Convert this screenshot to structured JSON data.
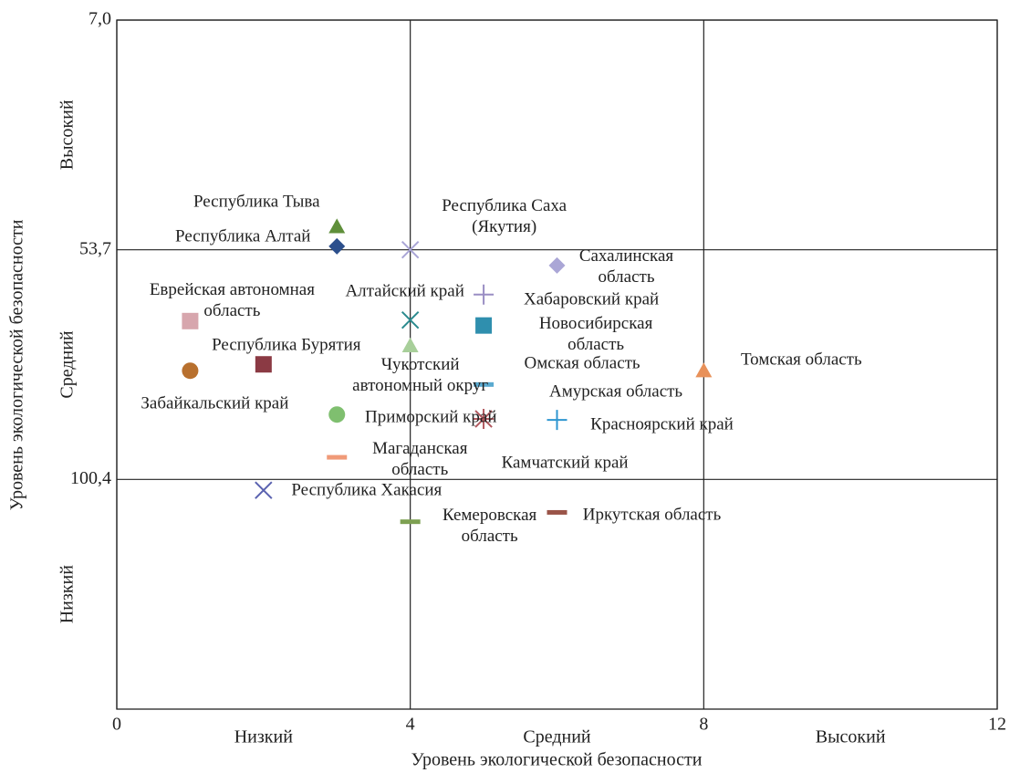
{
  "chart_data": {
    "type": "scatter",
    "x_label": "Уровень экологической безопасности",
    "y_label": "Уровень экологической безопасности",
    "x_categories": [
      "Низкий",
      "Средний",
      "Высокий"
    ],
    "y_categories": [
      "Высокий",
      "Средний",
      "Низкий"
    ],
    "xlim": [
      0,
      12
    ],
    "xticks": [
      0,
      4,
      8,
      12
    ],
    "ylim": [
      7.0,
      147.1
    ],
    "y_inverted": true,
    "yticks": [
      {
        "value": 7.0,
        "label": "7,0"
      },
      {
        "value": 53.7,
        "label": "53,7"
      },
      {
        "value": 100.4,
        "label": "100,4"
      }
    ],
    "grid": true,
    "points": [
      {
        "name": "Республика Тыва",
        "x": 3,
        "y": 49.0,
        "color": "#5f8f3a",
        "marker": "triangle"
      },
      {
        "name": "Республика Алтай",
        "x": 3,
        "y": 53.0,
        "color": "#2c4f8c",
        "marker": "diamond"
      },
      {
        "name": "Республика Саха (Якутия)",
        "x": 4,
        "y": 53.7,
        "color": "#a9a5d6",
        "marker": "x"
      },
      {
        "name": "Сахалинская область",
        "x": 6,
        "y": 56.9,
        "color": "#aaa6d6",
        "marker": "diamond"
      },
      {
        "name": "Хабаровский край",
        "x": 5,
        "y": 62.8,
        "color": "#9a8ec4",
        "marker": "plus"
      },
      {
        "name": "Алтайский край",
        "x": 4,
        "y": 68.0,
        "color": "#2a8a8e",
        "marker": "x"
      },
      {
        "name": "Еврейская автономная область",
        "x": 1,
        "y": 68.2,
        "color": "#d7a6ad",
        "marker": "square"
      },
      {
        "name": "Новосибирская область",
        "x": 5,
        "y": 69.1,
        "color": "#2f8fae",
        "marker": "square"
      },
      {
        "name": "Чукотский автономный округ",
        "x": 4,
        "y": 73.2,
        "color": "#a8cf9a",
        "marker": "triangle"
      },
      {
        "name": "Республика Бурятия",
        "x": 2,
        "y": 77.0,
        "color": "#8b3a44",
        "marker": "square"
      },
      {
        "name": "Забайкальский край",
        "x": 1,
        "y": 78.3,
        "color": "#b8702e",
        "marker": "circle"
      },
      {
        "name": "Томская область",
        "x": 8,
        "y": 78.3,
        "color": "#e8915a",
        "marker": "triangle"
      },
      {
        "name": "Омская область",
        "x": 5,
        "y": 81.1,
        "color": "#5aaad0",
        "marker": "dash"
      },
      {
        "name": "Приморский край",
        "x": 3,
        "y": 87.2,
        "color": "#7fbf6f",
        "marker": "circle"
      },
      {
        "name": "Амурская область",
        "x": 5,
        "y": 88.1,
        "color": "#b2585e",
        "marker": "star"
      },
      {
        "name": "Красноярский край",
        "x": 6,
        "y": 88.3,
        "color": "#2e96d0",
        "marker": "plus"
      },
      {
        "name": "Камчатский край",
        "x": 5,
        "y": 88.1,
        "color": "#b2585e",
        "marker": "star"
      },
      {
        "name": "Магаданская область",
        "x": 3,
        "y": 95.9,
        "color": "#f09a78",
        "marker": "dash"
      },
      {
        "name": "Республика Хакасия",
        "x": 2,
        "y": 102.6,
        "color": "#5a62b0",
        "marker": "x"
      },
      {
        "name": "Кемеровская область",
        "x": 4,
        "y": 109.0,
        "color": "#7da052",
        "marker": "dash"
      },
      {
        "name": "Иркутская область",
        "x": 6,
        "y": 107.1,
        "color": "#9a5448",
        "marker": "dash"
      }
    ]
  }
}
